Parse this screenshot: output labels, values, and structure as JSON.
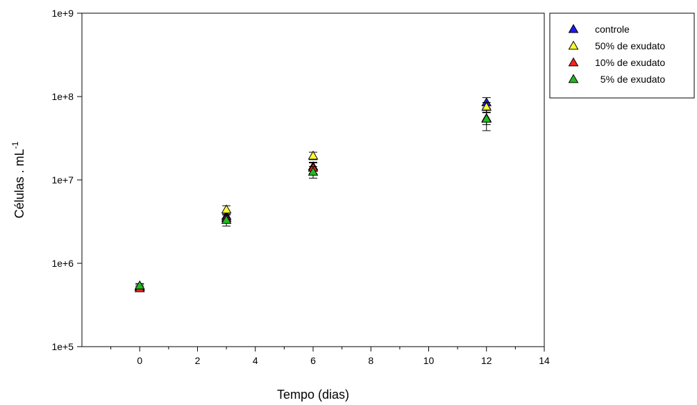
{
  "chart_data": {
    "type": "scatter",
    "xlabel": "Tempo (dias)",
    "ylabel_main": "Células . mL",
    "ylabel_sup": "-1",
    "xlim": [
      -2,
      14
    ],
    "ylim": [
      100000,
      1000000000
    ],
    "yscale": "log",
    "grid": false,
    "legend_position": "top-right",
    "x_ticks": [
      0,
      2,
      4,
      6,
      8,
      10,
      12,
      14
    ],
    "x_tick_labels": [
      "0",
      "2",
      "4",
      "6",
      "8",
      "10",
      "12",
      "14"
    ],
    "y_ticks": [
      100000,
      1000000,
      10000000,
      100000000,
      1000000000
    ],
    "y_tick_labels": [
      "1e+5",
      "1e+6",
      "1e+7",
      "1e+8",
      "1e+9"
    ],
    "x_minor_ticks": [
      -1,
      1,
      3,
      5,
      7,
      9,
      11,
      13
    ],
    "series": [
      {
        "name": "controle",
        "color": "#1a1aff",
        "x": [
          0,
          3,
          6,
          12
        ],
        "y": [
          530000,
          3700000,
          14500000,
          85000000
        ],
        "err": [
          40000,
          400000,
          1800000,
          12000000
        ]
      },
      {
        "name": "50% de exudato",
        "color": "#ffff33",
        "x": [
          0,
          3,
          6,
          12
        ],
        "y": [
          520000,
          4400000,
          19500000,
          75000000
        ],
        "err": [
          30000,
          500000,
          2000000,
          10000000
        ]
      },
      {
        "name": "10% de exudato",
        "color": "#ff2020",
        "x": [
          0,
          3,
          6,
          12
        ],
        "y": [
          500000,
          3500000,
          14000000,
          55000000
        ],
        "err": [
          25000,
          400000,
          2000000,
          9000000
        ]
      },
      {
        "name": "  5% de exudato",
        "color": "#22bb22",
        "x": [
          0,
          3,
          6,
          12
        ],
        "y": [
          540000,
          3300000,
          12500000,
          54000000
        ],
        "err": [
          30000,
          500000,
          2000000,
          15000000
        ]
      }
    ]
  }
}
